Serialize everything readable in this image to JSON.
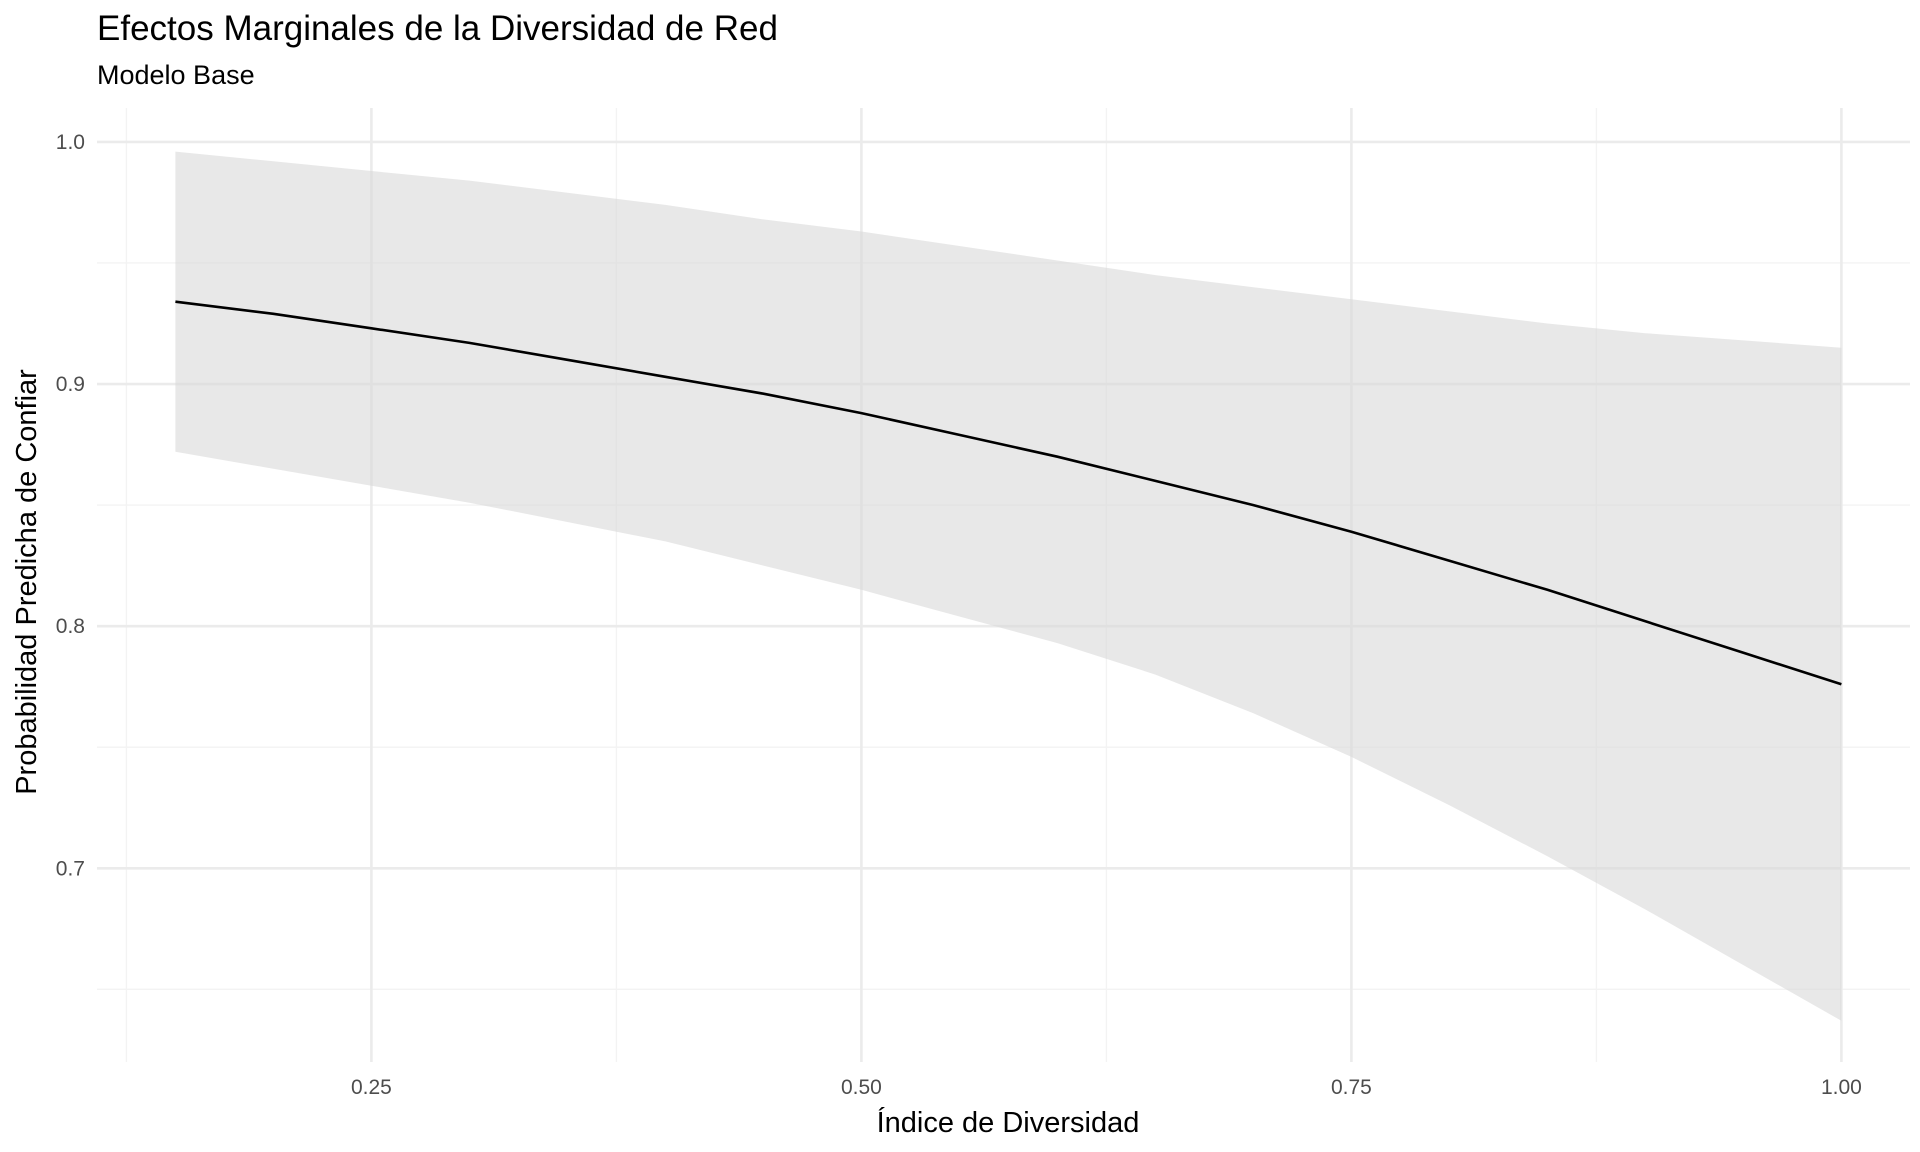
{
  "chart_data": {
    "type": "line",
    "title": "Efectos Marginales de la Diversidad de Red",
    "subtitle": "Modelo Base",
    "xlabel": "Índice de Diversidad",
    "ylabel": "Probabilidad Predicha de Confiar",
    "xlim": [
      0.11,
      1.035
    ],
    "ylim": [
      0.62,
      1.014
    ],
    "x_ticks": [
      0.25,
      0.5,
      0.75,
      1.0
    ],
    "x_tick_labels": [
      "0.25",
      "0.50",
      "0.75",
      "1.00"
    ],
    "x_minor_ticks": [
      0.125,
      0.375,
      0.625,
      0.875
    ],
    "y_ticks": [
      0.7,
      0.8,
      0.9,
      1.0
    ],
    "y_tick_labels": [
      "0.7",
      "0.8",
      "0.9",
      "1.0"
    ],
    "y_minor_ticks": [
      0.65,
      0.75,
      0.85,
      0.95
    ],
    "grid": true,
    "legend": "none",
    "series": [
      {
        "x": [
          0.15,
          0.2,
          0.25,
          0.3,
          0.35,
          0.4,
          0.45,
          0.5,
          0.55,
          0.6,
          0.65,
          0.7,
          0.75,
          0.8,
          0.85,
          0.9,
          0.95,
          1.0
        ],
        "y": [
          0.934,
          0.929,
          0.923,
          0.917,
          0.91,
          0.903,
          0.896,
          0.888,
          0.879,
          0.87,
          0.86,
          0.85,
          0.839,
          0.827,
          0.815,
          0.802,
          0.789,
          0.776
        ],
        "lower": [
          0.872,
          0.865,
          0.858,
          0.851,
          0.843,
          0.835,
          0.825,
          0.815,
          0.804,
          0.793,
          0.78,
          0.764,
          0.746,
          0.726,
          0.705,
          0.683,
          0.66,
          0.637
        ],
        "upper": [
          0.996,
          0.992,
          0.988,
          0.984,
          0.979,
          0.974,
          0.968,
          0.963,
          0.957,
          0.951,
          0.945,
          0.94,
          0.935,
          0.93,
          0.925,
          0.921,
          0.918,
          0.915
        ]
      }
    ],
    "colors": {
      "line": "#000000",
      "ribbon": "#d9d9d9",
      "grid_major": "#ebebeb",
      "grid_minor": "#f3f3f3",
      "tick_text": "#4d4d4d"
    }
  }
}
